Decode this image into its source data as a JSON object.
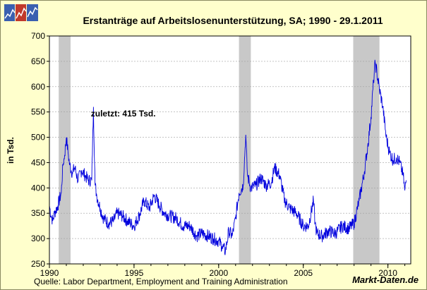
{
  "chart_data": {
    "type": "line",
    "title": "Erstanträge auf Arbeitslosenunterstützung, SA;  1990 - 29.1.2011",
    "ylabel": "in Tsd.",
    "xlabel": "",
    "xlim": [
      1990,
      2011.35
    ],
    "ylim": [
      250,
      700
    ],
    "y_ticks": [
      250,
      300,
      350,
      400,
      450,
      500,
      550,
      600,
      650,
      700
    ],
    "x_ticks": [
      1990,
      1995,
      2000,
      2005,
      2010
    ],
    "x_tick_labels": [
      "1990",
      "1995",
      "2000",
      "2005",
      "2010"
    ],
    "grid": true,
    "annotation": "zuletzt: 415 Tsd.",
    "recession_periods": [
      [
        1990.55,
        1991.25
      ],
      [
        2001.2,
        2001.9
      ],
      [
        2007.95,
        2009.5
      ]
    ],
    "series": [
      {
        "color": "#0000dd",
        "x": [
          1990.0,
          1990.1,
          1990.2,
          1990.3,
          1990.5,
          1990.7,
          1990.8,
          1990.9,
          1991.0,
          1991.1,
          1991.2,
          1991.35,
          1991.5,
          1991.7,
          1991.9,
          1992.1,
          1992.3,
          1992.5,
          1992.6,
          1992.7,
          1992.8,
          1993.0,
          1993.2,
          1993.5,
          1993.8,
          1994.0,
          1994.3,
          1994.6,
          1995.0,
          1995.3,
          1995.6,
          1995.9,
          1996.2,
          1996.5,
          1996.8,
          1997.1,
          1997.5,
          1997.9,
          1998.3,
          1998.7,
          1999.0,
          1999.4,
          1999.7,
          2000.0,
          2000.2,
          2000.4,
          2000.6,
          2000.8,
          2001.0,
          2001.2,
          2001.45,
          2001.6,
          2001.7,
          2001.9,
          2002.2,
          2002.5,
          2002.8,
          2003.1,
          2003.3,
          2003.6,
          2003.9,
          2004.2,
          2004.6,
          2005.0,
          2005.3,
          2005.6,
          2005.7,
          2005.8,
          2006.1,
          2006.5,
          2006.9,
          2007.3,
          2007.7,
          2008.0,
          2008.3,
          2008.6,
          2008.8,
          2009.0,
          2009.15,
          2009.25,
          2009.5,
          2009.7,
          2009.9,
          2010.1,
          2010.3,
          2010.5,
          2010.7,
          2010.9,
          2011.0,
          2011.08
        ],
        "y": [
          365,
          345,
          335,
          350,
          365,
          390,
          445,
          465,
          500,
          470,
          445,
          430,
          440,
          415,
          435,
          425,
          415,
          415,
          560,
          405,
          385,
          360,
          340,
          330,
          335,
          350,
          345,
          335,
          325,
          345,
          375,
          360,
          385,
          365,
          350,
          345,
          340,
          325,
          325,
          305,
          310,
          305,
          300,
          295,
          285,
          275,
          315,
          305,
          340,
          390,
          405,
          505,
          425,
          400,
          405,
          420,
          405,
          410,
          440,
          425,
          375,
          360,
          350,
          325,
          325,
          375,
          330,
          310,
          305,
          315,
          310,
          325,
          320,
          330,
          375,
          430,
          480,
          540,
          610,
          648,
          595,
          560,
          500,
          470,
          455,
          460,
          450,
          425,
          395,
          415
        ]
      }
    ]
  },
  "footer": {
    "source": "Quelle: Labor Department, Employment and Training Administration",
    "brand": "Markt-Daten.de"
  }
}
